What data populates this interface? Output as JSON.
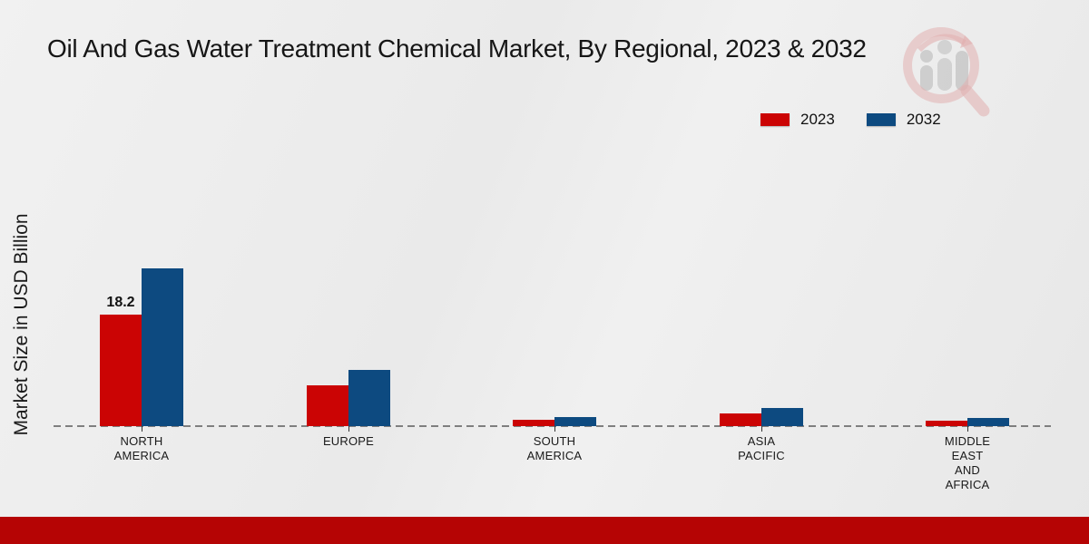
{
  "title": "Oil And Gas Water Treatment Chemical Market, By Regional, 2023 & 2032",
  "y_axis_label": "Market Size in USD Billion",
  "icons": {
    "watermark": "magnifier-bar-chart-logo"
  },
  "colors": {
    "series_2023": "#cb0404",
    "series_2032": "#0d4a80",
    "footer_bar": "#b50404",
    "baseline": "#7f7f7f",
    "text": "#1a1a1a",
    "background": "#ececec"
  },
  "chart_data": {
    "type": "bar",
    "title": "Oil And Gas Water Treatment Chemical Market, By Regional, 2023 & 2032",
    "xlabel": "",
    "ylabel": "Market Size in USD Billion",
    "categories": [
      "NORTH\nAMERICA",
      "EUROPE",
      "SOUTH\nAMERICA",
      "ASIA\nPACIFIC",
      "MIDDLE\nEAST\nAND\nAFRICA"
    ],
    "series": [
      {
        "name": "2023",
        "color": "#cb0404",
        "values": [
          18.2,
          6.6,
          1.0,
          2.0,
          0.9
        ]
      },
      {
        "name": "2032",
        "color": "#0d4a80",
        "values": [
          25.8,
          9.1,
          1.5,
          3.0,
          1.4
        ]
      }
    ],
    "value_labels": [
      {
        "series_index": 0,
        "category_index": 0,
        "text": "18.2"
      }
    ],
    "ylim": [
      0,
      26
    ],
    "grid": false,
    "baseline_style": "dashed",
    "legend_position": "top-right"
  }
}
